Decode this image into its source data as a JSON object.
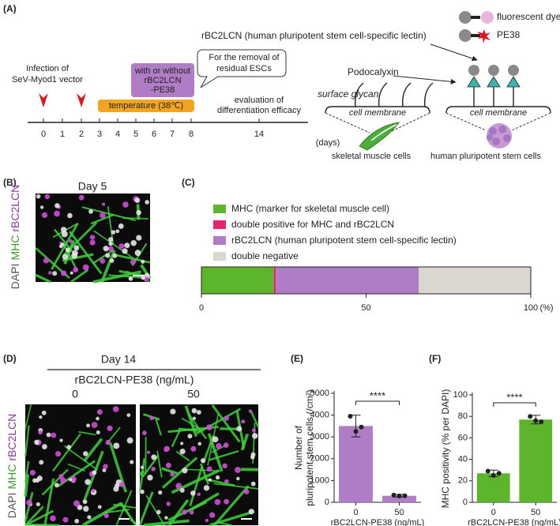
{
  "panel_labels": [
    "(A)",
    "(B)",
    "(C)",
    "(D)",
    "(E)",
    "(F)"
  ],
  "timeline": {
    "infection": [
      "Infection of",
      "SeV-Myod1 vector"
    ],
    "days": [
      0,
      1,
      2,
      3,
      4,
      5,
      6,
      7,
      8,
      14
    ],
    "unit": "(days)",
    "temperature": "temperature (38℃)",
    "treatment": [
      "with or without",
      "rBC2LCN",
      "-PE38"
    ],
    "callout": [
      "For the removal of",
      "residual ESCs"
    ],
    "evaluation": [
      "evaluation of",
      "differentiation efficacy"
    ]
  },
  "schematic": {
    "lectin": "rBC2LCN (human pluripotent stem cell-specific lectin)",
    "legend_dye": "fluorescent dye",
    "legend_toxin": "PE38",
    "podocalyxin": "Podocalyxin",
    "surface_glycan": "surface glycan",
    "membrane_left": "cell membrane",
    "membrane_right": "cell membrane",
    "caption_left": "skeletal muscle cells",
    "caption_right": "human pluripotent stem cells"
  },
  "panel_b": {
    "title": "Day 5",
    "stain": [
      "DAPI",
      "MHC",
      "rBC2LCN"
    ]
  },
  "panel_d": {
    "title": "Day 14",
    "condition": "rBC2LCN-PE38 (ng/mL)",
    "doses": [
      "0",
      "50"
    ],
    "stain": [
      "DAPI",
      "MHC",
      "rBC2LCN"
    ]
  },
  "chart_data": [
    {
      "type": "stacked-hbar",
      "series": [
        {
          "name": "MHC (marker for skeletal muscle cell)",
          "color": "#5db52b",
          "values": [
            22
          ]
        },
        {
          "name": "double positive for MHC and rBC2LCN",
          "color": "#e8236e",
          "values": [
            0.6
          ]
        },
        {
          "name": "rBC2LCN (human pluripotent stem cell-specific lectin)",
          "color": "#b07cc6",
          "values": [
            43.4
          ]
        },
        {
          "name": "double negative",
          "color": "#d9d7d0",
          "values": [
            34
          ]
        }
      ],
      "xlim": [
        0,
        100
      ],
      "xticks": [
        0,
        50,
        100
      ],
      "x_unit": "(%)"
    },
    {
      "type": "bar",
      "ylabel": [
        "Number of",
        "pluripotent  stem cells (/cm²)"
      ],
      "xlabel": "rBC2LCN-PE38 (ng/mL)",
      "categories": [
        "0",
        "50"
      ],
      "values": [
        3500,
        300
      ],
      "errors": [
        500,
        60
      ],
      "points": [
        [
          3950,
          3250,
          3450
        ],
        [
          330,
          290,
          300
        ]
      ],
      "color": "#b07cc6",
      "ylim": [
        0,
        5000
      ],
      "yticks": [
        0,
        1000,
        2000,
        3000,
        4000,
        5000
      ],
      "significance": "****"
    },
    {
      "type": "bar",
      "ylabel": [
        "MHC positivity (% per DAPI)"
      ],
      "xlabel": "rBC2LCN-PE38 (ng/mL)",
      "categories": [
        "0",
        "50"
      ],
      "values": [
        27,
        77
      ],
      "errors": [
        3,
        4
      ],
      "points": [
        [
          29,
          25,
          27
        ],
        [
          80,
          76,
          75
        ]
      ],
      "color": "#5db52b",
      "ylim": [
        0,
        100
      ],
      "yticks": [
        0,
        20,
        40,
        60,
        80,
        100
      ],
      "significance": "****"
    }
  ]
}
